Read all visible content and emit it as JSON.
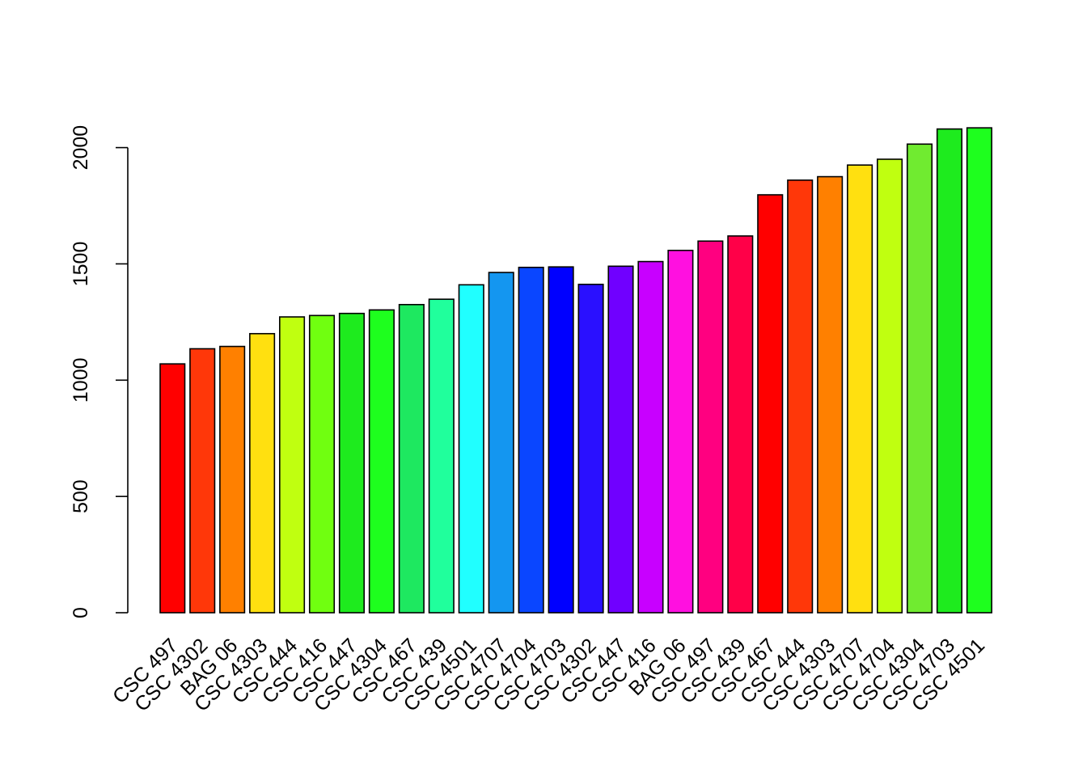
{
  "chart_data": {
    "type": "bar",
    "title": "",
    "xlabel": "",
    "ylabel": "",
    "categories": [
      "CSC 497",
      "CSC 4302",
      "BAG 06",
      "CSC 4303",
      "CSC 444",
      "CSC 416",
      "CSC 447",
      "CSC 4304",
      "CSC 467",
      "CSC 439",
      "CSC 4501",
      "CSC 4707",
      "CSC 4704",
      "CSC 4703",
      "CSC 4302",
      "CSC 447",
      "CSC 416",
      "BAG 06",
      "CSC 497",
      "CSC 439",
      "CSC 467",
      "CSC 444",
      "CSC 4303",
      "CSC 4707",
      "CSC 4704",
      "CSC 4304",
      "CSC 4703",
      "CSC 4501"
    ],
    "values": [
      1070,
      1135,
      1145,
      1200,
      1272,
      1278,
      1287,
      1302,
      1325,
      1348,
      1410,
      1463,
      1485,
      1487,
      1412,
      1490,
      1510,
      1558,
      1598,
      1620,
      1797,
      1860,
      1875,
      1925,
      1950,
      2015,
      2080,
      2085
    ],
    "colors": [
      "#FF0000",
      "#FF3709",
      "#FF8000",
      "#FFE010",
      "#C0FF10",
      "#70FF10",
      "#1EEB1E",
      "#1EFF1E",
      "#1EE860",
      "#20FF9C",
      "#20FFFF",
      "#1496F0",
      "#0A46FF",
      "#0000FF",
      "#2A10FF",
      "#7000FF",
      "#C800FF",
      "#FF10E0",
      "#FF0080",
      "#FF0048",
      "#FF0000",
      "#FF3709",
      "#FF8000",
      "#FFE010",
      "#C0FF10",
      "#70EB30",
      "#1EEB1E",
      "#1EFF1E"
    ],
    "ylim": [
      0,
      2100
    ],
    "yticks": [
      0,
      500,
      1000,
      1500,
      2000
    ],
    "grid": false,
    "legend": "none"
  }
}
